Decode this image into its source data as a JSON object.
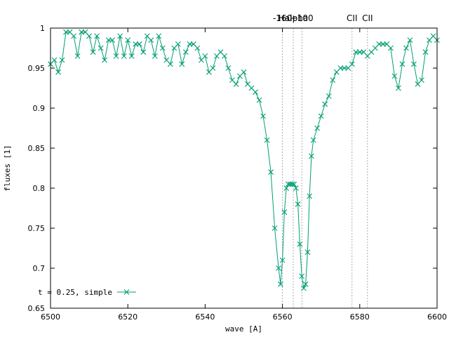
{
  "chart_data": {
    "type": "line",
    "title": "",
    "xlabel": "wave [A]",
    "ylabel": "fluxes [1]",
    "xlim": [
      6500,
      6600
    ],
    "ylim": [
      0.65,
      1.0
    ],
    "x_ticks": [
      6500,
      6520,
      6540,
      6560,
      6580,
      6600
    ],
    "y_ticks": [
      0.65,
      0.7,
      0.75,
      0.8,
      0.85,
      0.9,
      0.95,
      1
    ],
    "y_tick_labels": [
      "0.65",
      "0.7",
      "0.75",
      "0.8",
      "0.85",
      "0.9",
      "0.95",
      "1"
    ],
    "grid": false,
    "legend_position": "bottom-left",
    "line_markers": [
      {
        "label": "-160",
        "x": 6560.0
      },
      {
        "label": "Halpha",
        "x": 6562.8
      },
      {
        "label": "+100",
        "x": 6565.0
      },
      {
        "label": "CII",
        "x": 6578.0
      },
      {
        "label": "CII",
        "x": 6582.0
      }
    ],
    "series": [
      {
        "name": "t = 0.25, simple",
        "color": "#009e73",
        "marker": "x",
        "x": [
          6500,
          6501,
          6502,
          6503,
          6504,
          6505,
          6506,
          6507,
          6508,
          6509,
          6510,
          6511,
          6512,
          6513,
          6514,
          6515,
          6516,
          6517,
          6518,
          6519,
          6520,
          6521,
          6522,
          6523,
          6524,
          6525,
          6526,
          6527,
          6528,
          6529,
          6530,
          6531,
          6532,
          6533,
          6534,
          6535,
          6536,
          6537,
          6538,
          6539,
          6540,
          6541,
          6542,
          6543,
          6544,
          6545,
          6546,
          6547,
          6548,
          6549,
          6550,
          6551,
          6552,
          6553,
          6554,
          6555,
          6556,
          6557,
          6558,
          6559,
          6559.5,
          6560,
          6560.5,
          6561,
          6561.5,
          6562,
          6562.5,
          6563,
          6563.5,
          6564,
          6564.5,
          6565,
          6565.5,
          6566,
          6566.5,
          6567,
          6567.5,
          6568,
          6569,
          6570,
          6571,
          6572,
          6573,
          6574,
          6575,
          6576,
          6577,
          6578,
          6579,
          6580,
          6581,
          6582,
          6583,
          6584,
          6585,
          6586,
          6587,
          6588,
          6589,
          6590,
          6591,
          6592,
          6593,
          6594,
          6595,
          6596,
          6597,
          6598,
          6599,
          6600
        ],
        "y": [
          0.955,
          0.96,
          0.945,
          0.96,
          0.995,
          0.995,
          0.99,
          0.965,
          0.995,
          0.995,
          0.99,
          0.97,
          0.99,
          0.975,
          0.96,
          0.985,
          0.985,
          0.965,
          0.99,
          0.965,
          0.985,
          0.965,
          0.98,
          0.98,
          0.97,
          0.99,
          0.985,
          0.965,
          0.99,
          0.975,
          0.96,
          0.955,
          0.975,
          0.98,
          0.955,
          0.97,
          0.98,
          0.98,
          0.975,
          0.96,
          0.965,
          0.945,
          0.95,
          0.965,
          0.97,
          0.965,
          0.95,
          0.935,
          0.93,
          0.94,
          0.945,
          0.93,
          0.925,
          0.92,
          0.91,
          0.89,
          0.86,
          0.82,
          0.75,
          0.7,
          0.68,
          0.71,
          0.77,
          0.8,
          0.805,
          0.805,
          0.805,
          0.805,
          0.8,
          0.78,
          0.73,
          0.69,
          0.675,
          0.68,
          0.72,
          0.79,
          0.84,
          0.86,
          0.875,
          0.89,
          0.905,
          0.915,
          0.935,
          0.945,
          0.95,
          0.95,
          0.95,
          0.955,
          0.97,
          0.97,
          0.97,
          0.965,
          0.97,
          0.975,
          0.98,
          0.98,
          0.98,
          0.975,
          0.94,
          0.925,
          0.955,
          0.975,
          0.985,
          0.955,
          0.93,
          0.935,
          0.97,
          0.985,
          0.99,
          0.985
        ]
      }
    ]
  }
}
